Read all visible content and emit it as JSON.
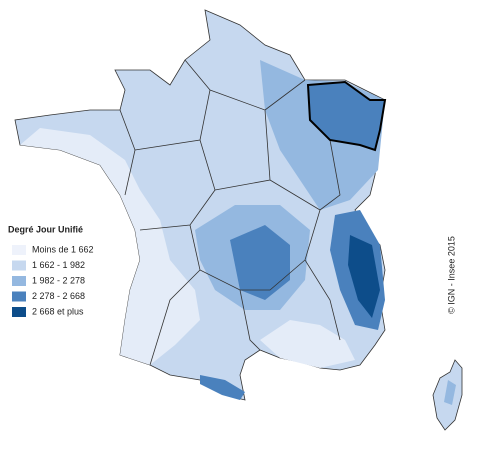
{
  "legend": {
    "title": "Degré Jour Unifié",
    "items": [
      {
        "label": "Moins de 1 662",
        "color": "#eef2fb"
      },
      {
        "label": "1 662 - 1 982",
        "color": "#c6d8ef"
      },
      {
        "label": "1 982 - 2 278",
        "color": "#94b8e0"
      },
      {
        "label": "2 278 - 2 668",
        "color": "#4a81bd"
      },
      {
        "label": "2 668 et plus",
        "color": "#0d4d8a"
      }
    ]
  },
  "copyright": "© IGN - Insee 2015"
}
